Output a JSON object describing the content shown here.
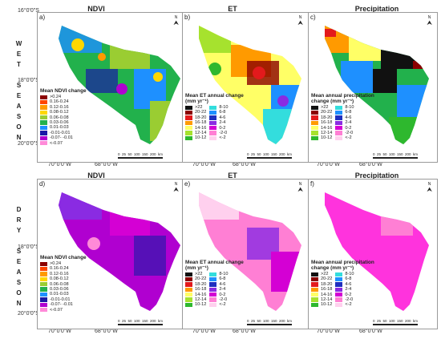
{
  "columns": {
    "ndvi": "NDVI",
    "et": "ET",
    "precip": "Precipitation"
  },
  "rows": {
    "wet": [
      "W",
      "E",
      "T",
      "",
      "S",
      "E",
      "A",
      "S",
      "O",
      "N"
    ],
    "dry": [
      "D",
      "R",
      "Y",
      "",
      "S",
      "E",
      "A",
      "S",
      "O",
      "N"
    ]
  },
  "lat_labels": {
    "top": [
      "16°0'0\"S",
      "18°0'0\"S",
      "20°0'0\"S"
    ],
    "bottom": [
      "18°0'0\"S",
      "20°0'0\"S"
    ]
  },
  "lon_labels": [
    "70°0'0\"W",
    "68°0'0\"W",
    "70°0'0\"W",
    "68°0'0\"W",
    "70°0'0\"W",
    "68°0'0\"W"
  ],
  "panels": {
    "a": "a)",
    "b": "b)",
    "c": "c)",
    "d": "d)",
    "e": "e)",
    "f": "f)"
  },
  "north": "N",
  "scalebar": {
    "ticks": [
      "0",
      "25",
      "50",
      "100",
      "150",
      "200"
    ],
    "unit": "km"
  },
  "legends": {
    "ndvi": {
      "title": "Mean NDVI change",
      "items": [
        {
          "label": ">0.24",
          "color": "#8b0000"
        },
        {
          "label": "0.16-0.24",
          "color": "#ff4500"
        },
        {
          "label": "0.12-0.16",
          "color": "#ff9a00"
        },
        {
          "label": "0.08-0.12",
          "color": "#ffd700"
        },
        {
          "label": "0.06-0.08",
          "color": "#9acd32"
        },
        {
          "label": "0.03-0.06",
          "color": "#22b14c"
        },
        {
          "label": "0.01-0.03",
          "color": "#1e90ff"
        },
        {
          "label": "-0.01-0.01",
          "color": "#1a1aa6"
        },
        {
          "label": "-0.07- -0.01",
          "color": "#b000d0"
        },
        {
          "label": "<-0.07",
          "color": "#ff8ad8"
        }
      ]
    },
    "et": {
      "title_line1": "Mean ET annual change",
      "title_line2": "(mm yr⁻¹)",
      "left": [
        {
          "label": ">22",
          "color": "#111111"
        },
        {
          "label": "20-22",
          "color": "#8b0000"
        },
        {
          "label": "18-20",
          "color": "#e31a1c"
        },
        {
          "label": "16-18",
          "color": "#ff9a00"
        },
        {
          "label": "14-16",
          "color": "#ffff66"
        },
        {
          "label": "12-14",
          "color": "#a6e22e"
        },
        {
          "label": "10-12",
          "color": "#2eb82e"
        }
      ],
      "right": [
        {
          "label": "8-10",
          "color": "#33dddd"
        },
        {
          "label": "6-8",
          "color": "#1e90ff"
        },
        {
          "label": "4-6",
          "color": "#1f2fbf"
        },
        {
          "label": "2-4",
          "color": "#8a2be2"
        },
        {
          "label": "0-2",
          "color": "#d400d4"
        },
        {
          "label": "-2-0",
          "color": "#ff7fd4"
        },
        {
          "label": "<-2",
          "color": "#ffd0ee"
        }
      ]
    },
    "precip": {
      "title_line1": "Mean annual precipitation",
      "title_line2": "change (mm yr⁻¹)"
    }
  }
}
